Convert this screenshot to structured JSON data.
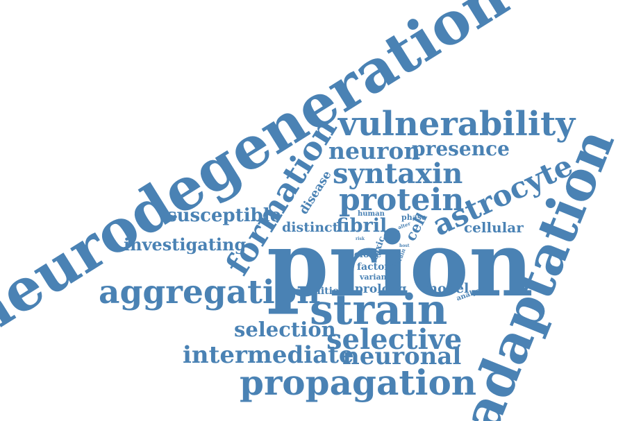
{
  "word_cloud": {
    "color": "#4a82b4",
    "words": {
      "neurodegeneration": "neurodegeneration",
      "vulnerability": "vulnerability",
      "formation": "formation",
      "neuron": "neuron",
      "presence": "presence",
      "syntaxin": "syntaxin",
      "disease": "disease",
      "protein": "protein",
      "astrocyte": "astrocyte",
      "adaptation": "adaptation",
      "susceptible": "susceptible",
      "distinct": "distinct",
      "fibril": "fibril",
      "human": "human",
      "phase": "phase",
      "risk": "risk",
      "vitro": "vitro",
      "alter": "alter",
      "cell": "cell",
      "cellular": "cellular",
      "investigating": "investigating",
      "prion": "prion",
      "clone": "clone",
      "toxic": "toxic",
      "host": "host",
      "brain": "brain",
      "self": "self",
      "factor": "factor",
      "variant": "variant",
      "aggregation": "aggregation",
      "condition": "condition",
      "prolong": "prolong",
      "model": "model",
      "analysis": "analysis",
      "strain": "strain",
      "selection": "selection",
      "selective": "selective",
      "intermediate": "intermediate",
      "neuronal": "neuronal",
      "propagation": "propagation"
    }
  }
}
